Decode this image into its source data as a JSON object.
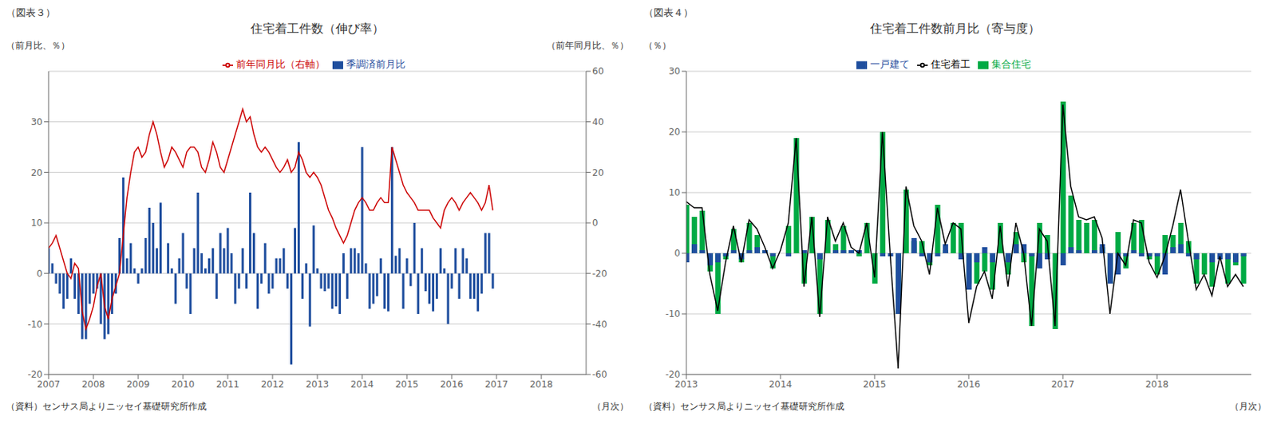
{
  "chart_data": [
    {
      "type": "bar",
      "title": "住宅着工件数（伸び率）",
      "annotations": [
        "（図表３）",
        "（資料）センサス局よりニッセイ基礎研究所作成"
      ],
      "xlabel": "（月次）",
      "ylabel": "（前月比、％）",
      "y2label": "（前年同月比、％）",
      "x": [
        2007,
        2007.083333,
        2007.166667,
        2007.25,
        2007.333333,
        2007.416667,
        2007.5,
        2007.583333,
        2007.666667,
        2007.75,
        2007.833333,
        2007.916667,
        2008,
        2008.083333,
        2008.166667,
        2008.25,
        2008.333333,
        2008.416667,
        2008.5,
        2008.583333,
        2008.666667,
        2008.75,
        2008.833333,
        2008.916667,
        2009,
        2009.083333,
        2009.166667,
        2009.25,
        2009.333333,
        2009.416667,
        2009.5,
        2009.583333,
        2009.666667,
        2009.75,
        2009.833333,
        2009.916667,
        2010,
        2010.083333,
        2010.166667,
        2010.25,
        2010.333333,
        2010.416667,
        2010.5,
        2010.583333,
        2010.666667,
        2010.75,
        2010.833333,
        2010.916667,
        2011,
        2011.083333,
        2011.166667,
        2011.25,
        2011.333333,
        2011.416667,
        2011.5,
        2011.583333,
        2011.666667,
        2011.75,
        2011.833333,
        2011.916667,
        2012,
        2012.083333,
        2012.166667,
        2012.25,
        2012.333333,
        2012.416667,
        2012.5,
        2012.583333,
        2012.666667,
        2012.75,
        2012.833333,
        2012.916667,
        2013,
        2013.083333,
        2013.166667,
        2013.25,
        2013.333333,
        2013.416667,
        2013.5,
        2013.583333,
        2013.666667,
        2013.75,
        2013.833333,
        2013.916667,
        2014,
        2014.083333,
        2014.166667,
        2014.25,
        2014.333333,
        2014.416667,
        2014.5,
        2014.583333,
        2014.666667,
        2014.75,
        2014.833333,
        2014.916667,
        2015,
        2015.083333,
        2015.166667,
        2015.25,
        2015.333333,
        2015.416667,
        2015.5,
        2015.583333,
        2015.666667,
        2015.75,
        2015.833333,
        2015.916667,
        2016,
        2016.083333,
        2016.166667,
        2016.25,
        2016.333333,
        2016.416667,
        2016.5,
        2016.583333,
        2016.666667,
        2016.75,
        2016.833333,
        2016.916667
      ],
      "xlim": [
        2007,
        2019
      ],
      "xticks": [
        2007,
        2008,
        2009,
        2010,
        2011,
        2012,
        2013,
        2014,
        2015,
        2016,
        2017,
        2018
      ],
      "ylim": [
        -20,
        40
      ],
      "yticks": [
        -20,
        -10,
        0,
        10,
        20,
        30
      ],
      "y2lim": [
        -60,
        60
      ],
      "y2ticks": [
        -60,
        -40,
        -20,
        0,
        20,
        40,
        60
      ],
      "grid": true,
      "legend": "top",
      "series": [
        {
          "name": "季調済前月比",
          "type": "bar",
          "color": "#1f4e9e",
          "values": [
            5.0,
            2.0,
            -2.0,
            -4.0,
            -7.0,
            -5.0,
            3.0,
            -5.0,
            -8.0,
            -13.0,
            -13.0,
            -6.0,
            -4.0,
            -3.0,
            -10.0,
            -13.0,
            -12.0,
            -8.0,
            -4.0,
            7.0,
            19.0,
            3.0,
            6.0,
            1.0,
            -2.0,
            1.0,
            7.0,
            13.0,
            10.0,
            5.0,
            14.0,
            0.0,
            6.0,
            1.0,
            -6.0,
            3.0,
            8.0,
            -3.0,
            -8.0,
            5.0,
            16.0,
            4.0,
            1.0,
            3.0,
            5.0,
            -5.0,
            8.0,
            5.0,
            9.0,
            4.0,
            -6.0,
            -3.0,
            5.0,
            -3.0,
            16.0,
            8.0,
            -7.0,
            -2.0,
            6.0,
            -4.0,
            -3.0,
            3.0,
            3.0,
            5.0,
            -3.0,
            -18.0,
            9.0,
            26.0,
            -5.0,
            2.0,
            -10.5,
            9.5,
            1.0,
            -3.0,
            -3.5,
            -3.0,
            -7.0,
            -6.5,
            -8.0,
            4.0,
            -5.0,
            5.0,
            5.0,
            4.0,
            25.0,
            2.0,
            -7.0,
            -6.0,
            -4.5,
            3.0,
            -7.0,
            -7.5,
            25.0,
            3.5,
            5.0,
            -7.0,
            3.0,
            -2.5,
            10.0,
            -8.0,
            5.0,
            -3.5,
            -6.0,
            -7.5,
            -5.0,
            5.0,
            1.0,
            -10.0,
            -3.0,
            5.0,
            -5.0,
            5.0,
            3.0,
            -5.0,
            -5.0,
            -7.5,
            -4.0,
            8.0,
            8.0,
            -3.0
          ]
        },
        {
          "name": "前年同月比（右軸）",
          "type": "line",
          "color": "#cc0000",
          "axis": "y2",
          "values": [
            -10.0,
            -8.0,
            -5.0,
            -10.0,
            -15.0,
            -20.0,
            -22.0,
            -16.0,
            -18.0,
            -35.0,
            -42.0,
            -38.0,
            -33.0,
            -25.0,
            -20.0,
            -33.0,
            -38.0,
            -30.0,
            -25.0,
            -20.0,
            -5.0,
            10.0,
            20.0,
            28.0,
            30.0,
            26.0,
            28.0,
            35.0,
            40.0,
            35.0,
            28.0,
            22.0,
            25.0,
            30.0,
            28.0,
            25.0,
            22.0,
            28.0,
            30.0,
            30.0,
            28.0,
            22.0,
            20.0,
            25.0,
            32.0,
            28.0,
            22.0,
            20.0,
            25.0,
            30.0,
            35.0,
            40.0,
            45.0,
            40.0,
            42.0,
            35.0,
            30.0,
            28.0,
            30.0,
            28.0,
            25.0,
            22.0,
            20.0,
            22.0,
            25.0,
            20.0,
            22.0,
            28.0,
            25.0,
            20.0,
            18.0,
            20.0,
            18.0,
            15.0,
            10.0,
            5.0,
            2.0,
            -2.0,
            -5.0,
            -8.0,
            -5.0,
            0.0,
            5.0,
            8.0,
            10.0,
            8.0,
            5.0,
            5.0,
            8.0,
            10.0,
            8.0,
            8.0,
            30.0,
            25.0,
            20.0,
            15.0,
            12.0,
            10.0,
            8.0,
            5.0,
            5.0,
            5.0,
            5.0,
            2.0,
            0.0,
            -2.0,
            5.0,
            8.0,
            10.0,
            8.0,
            5.0,
            8.0,
            10.0,
            12.0,
            10.0,
            8.0,
            5.0,
            8.0,
            15.0,
            5.0
          ]
        }
      ]
    },
    {
      "type": "bar",
      "title": "住宅着工件数前月比（寄与度）",
      "annotations": [
        "（図表４）",
        "（資料）センサス局よりニッセイ基礎研究所作成"
      ],
      "xlabel": "（月次）",
      "ylabel": "（％）",
      "x": [
        2013,
        2013.083333,
        2013.166667,
        2013.25,
        2013.333333,
        2013.416667,
        2013.5,
        2013.583333,
        2013.666667,
        2013.75,
        2013.833333,
        2013.916667,
        2014,
        2014.083333,
        2014.166667,
        2014.25,
        2014.333333,
        2014.416667,
        2014.5,
        2014.583333,
        2014.666667,
        2014.75,
        2014.833333,
        2014.916667,
        2015,
        2015.083333,
        2015.166667,
        2015.25,
        2015.333333,
        2015.416667,
        2015.5,
        2015.583333,
        2015.666667,
        2015.75,
        2015.833333,
        2015.916667,
        2016,
        2016.083333,
        2016.166667,
        2016.25,
        2016.333333,
        2016.416667,
        2016.5,
        2016.583333,
        2016.666667,
        2016.75,
        2016.833333,
        2016.916667,
        2017,
        2017.083333,
        2017.166667,
        2017.25,
        2017.333333,
        2017.416667,
        2017.5,
        2017.583333,
        2017.666667,
        2017.75,
        2017.833333,
        2017.916667,
        2018,
        2018.083333,
        2018.166667,
        2018.25,
        2018.333333,
        2018.416667,
        2018.5,
        2018.583333,
        2018.666667,
        2018.75,
        2018.833333,
        2018.916667
      ],
      "xlim": [
        2013,
        2019
      ],
      "xticks": [
        2013,
        2014,
        2015,
        2016,
        2017,
        2018
      ],
      "ylim": [
        -20,
        30
      ],
      "yticks": [
        -20,
        -10,
        0,
        10,
        20,
        30
      ],
      "grid": true,
      "legend": "top",
      "series": [
        {
          "name": "集合住宅",
          "type": "bar",
          "color": "#00aa44",
          "values": [
            8.0,
            6.0,
            7.0,
            -3.0,
            -10.0,
            -1.0,
            4.0,
            -1.5,
            5.0,
            3.0,
            0.5,
            -2.5,
            0.0,
            4.5,
            19.0,
            -5.0,
            6.0,
            -10.0,
            5.5,
            1.5,
            4.5,
            0.5,
            -0.5,
            5.0,
            -5.0,
            20.0,
            0.0,
            -10.0,
            10.5,
            2.0,
            2.0,
            -2.0,
            8.0,
            0.5,
            5.0,
            5.0,
            -5.0,
            -5.0,
            -3.0,
            -6.0,
            5.0,
            -3.5,
            3.5,
            -1.5,
            -12.0,
            5.0,
            3.0,
            -12.5,
            25.0,
            9.5,
            5.5,
            5.0,
            5.5,
            1.0,
            -5.0,
            3.5,
            -2.5,
            5.0,
            5.5,
            -1.0,
            -3.5,
            3.0,
            3.0,
            5.0,
            2.0,
            -5.0,
            -3.5,
            -5.5,
            0.0,
            -5.0,
            -2.0,
            -5.0
          ]
        },
        {
          "name": "一戸建て",
          "type": "bar",
          "color": "#1f4e9e",
          "values": [
            -1.5,
            1.5,
            0.5,
            -2.0,
            -1.5,
            -0.5,
            0.5,
            -1.0,
            0.5,
            1.0,
            0.5,
            -0.5,
            0.0,
            -0.5,
            0.0,
            0.5,
            0.0,
            -1.0,
            0.0,
            0.5,
            0.5,
            0.5,
            0.5,
            0.0,
            0.0,
            -0.5,
            -0.5,
            -10.0,
            0.0,
            2.5,
            -0.5,
            -1.5,
            -0.5,
            1.5,
            0.0,
            -1.0,
            -6.0,
            -1.5,
            1.0,
            -1.5,
            0.0,
            -1.5,
            1.5,
            1.5,
            -0.5,
            -2.5,
            -1.0,
            0.0,
            -2.0,
            1.0,
            0.5,
            0.0,
            0.5,
            1.5,
            -5.0,
            -3.5,
            -0.5,
            0.5,
            -0.5,
            -0.5,
            -0.5,
            -3.5,
            1.0,
            1.5,
            -0.5,
            -1.0,
            0.0,
            -1.5,
            -1.0,
            -1.0,
            -1.5,
            -0.5
          ]
        },
        {
          "name": "住宅着工",
          "type": "line",
          "color": "#000000",
          "values": [
            8.5,
            7.5,
            7.5,
            -3.5,
            -9.5,
            -1.5,
            4.5,
            -1.5,
            5.5,
            4.0,
            1.0,
            -2.5,
            0.5,
            5.0,
            19.0,
            -5.5,
            6.0,
            -10.5,
            6.0,
            2.0,
            5.0,
            1.0,
            0.0,
            5.0,
            -4.0,
            20.0,
            -0.5,
            -19.0,
            11.0,
            4.5,
            2.0,
            -3.5,
            7.5,
            1.5,
            5.0,
            4.0,
            -11.5,
            -5.5,
            -3.0,
            -7.5,
            4.5,
            -5.5,
            5.0,
            0.0,
            -12.0,
            4.0,
            2.0,
            -12.0,
            24.5,
            11.0,
            6.0,
            5.5,
            6.0,
            2.5,
            -10.0,
            0.0,
            -2.0,
            5.5,
            5.0,
            -1.5,
            -4.0,
            -0.5,
            4.5,
            10.5,
            2.0,
            -6.0,
            -3.5,
            -7.0,
            -0.5,
            -5.5,
            -3.5,
            -5.5
          ]
        }
      ]
    }
  ]
}
